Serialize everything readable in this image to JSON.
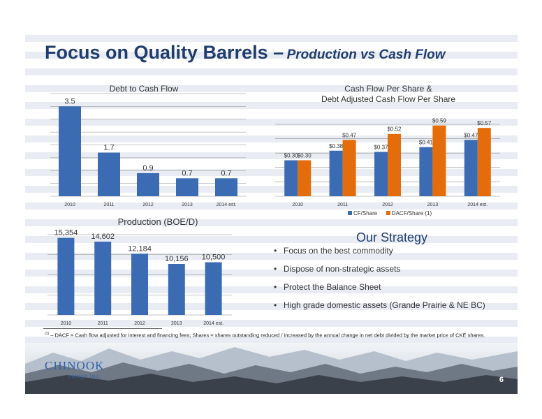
{
  "title": {
    "main": "Focus on Quality Barrels –",
    "sub": "Production vs Cash Flow"
  },
  "colors": {
    "blue": "#3b6cb3",
    "orange": "#e46c0a",
    "title": "#1f3c6e"
  },
  "chart_data": [
    {
      "type": "bar",
      "title": "Debt to Cash Flow",
      "categories": [
        "2010",
        "2011",
        "2012",
        "2013",
        "2014 est."
      ],
      "values": [
        3.5,
        1.7,
        0.9,
        0.7,
        0.7
      ],
      "labels": [
        "3.5",
        "1.7",
        "0.9",
        "0.7",
        "0.7"
      ],
      "ylim": [
        0,
        4
      ],
      "grid": true,
      "color": "#3b6cb3"
    },
    {
      "type": "bar",
      "title_lines": [
        "Cash Flow Per Share &",
        "Debt Adjusted Cash Flow Per Share"
      ],
      "categories": [
        "2010",
        "2011",
        "2012",
        "2013",
        "2014 est."
      ],
      "series": [
        {
          "name": "CF/Share",
          "values": [
            0.3,
            0.38,
            0.37,
            0.41,
            0.47
          ],
          "labels": [
            "$0.30",
            "$0.38",
            "$0.37",
            "$0.41",
            "$0.47"
          ],
          "color": "#3b6cb3"
        },
        {
          "name": "DACF/Share (1)",
          "values": [
            0.3,
            0.47,
            0.52,
            0.59,
            0.57
          ],
          "labels": [
            "$0.30",
            "$0.47",
            "$0.52",
            "$0.59",
            "$0.57"
          ],
          "color": "#e46c0a"
        }
      ],
      "ylim": [
        0,
        0.6
      ],
      "grid": true,
      "legend": "bottom"
    },
    {
      "type": "bar",
      "title": "Production (BOE/D)",
      "categories": [
        "2010",
        "2011",
        "2012",
        "2013",
        "2014 est."
      ],
      "values": [
        15354,
        14602,
        12184,
        10156,
        10500
      ],
      "labels": [
        "15,354",
        "14,602",
        "12,184",
        "10,156",
        "10,500"
      ],
      "ylim": [
        0,
        16000
      ],
      "grid": true,
      "color": "#3b6cb3"
    }
  ],
  "strategy": {
    "title": "Our Strategy",
    "items": [
      "Focus on the best commodity",
      "Dispose of non-strategic assets",
      "Protect the Balance Sheet",
      "High grade domestic assets (Grande Prairie & NE BC)"
    ]
  },
  "footnote": {
    "marker": "(1)",
    "text": " – DACF = Cash flow adjusted for interest and financing fees;  Shares = shares outstanding reduced / increased by the annual change in net debt divided by the market price of CKE shares."
  },
  "logo": {
    "name": "CHINOOK",
    "tagline": "energy inc."
  },
  "page_number": "6"
}
